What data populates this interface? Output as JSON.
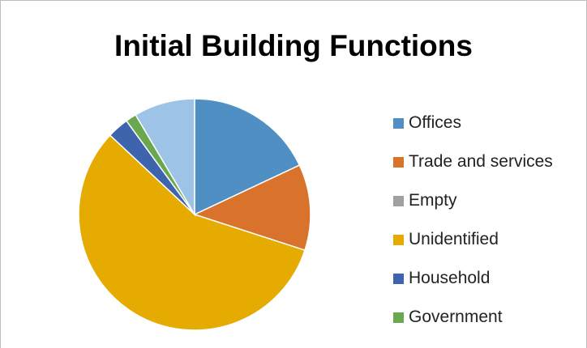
{
  "chart_data": {
    "type": "pie",
    "title": "Initial Building Functions",
    "legend_position": "right",
    "categories": [
      "Offices",
      "Trade and services",
      "Empty",
      "Unidentified",
      "Household",
      "Government",
      ""
    ],
    "values": [
      18,
      12,
      0,
      57,
      3,
      1.5,
      8.5
    ],
    "colors": [
      "#4f8fc4",
      "#d9732c",
      "#a0a0a0",
      "#e5ab00",
      "#3d64ad",
      "#6aa84f",
      "#9dc3e6"
    ],
    "legend": [
      {
        "label": "Offices",
        "color": "#4f8fc4"
      },
      {
        "label": "Trade and services",
        "color": "#d9732c"
      },
      {
        "label": "Empty",
        "color": "#a0a0a0"
      },
      {
        "label": "Unidentified",
        "color": "#e5ab00"
      },
      {
        "label": "Household",
        "color": "#3d64ad"
      },
      {
        "label": "Government",
        "color": "#6aa84f"
      }
    ]
  }
}
